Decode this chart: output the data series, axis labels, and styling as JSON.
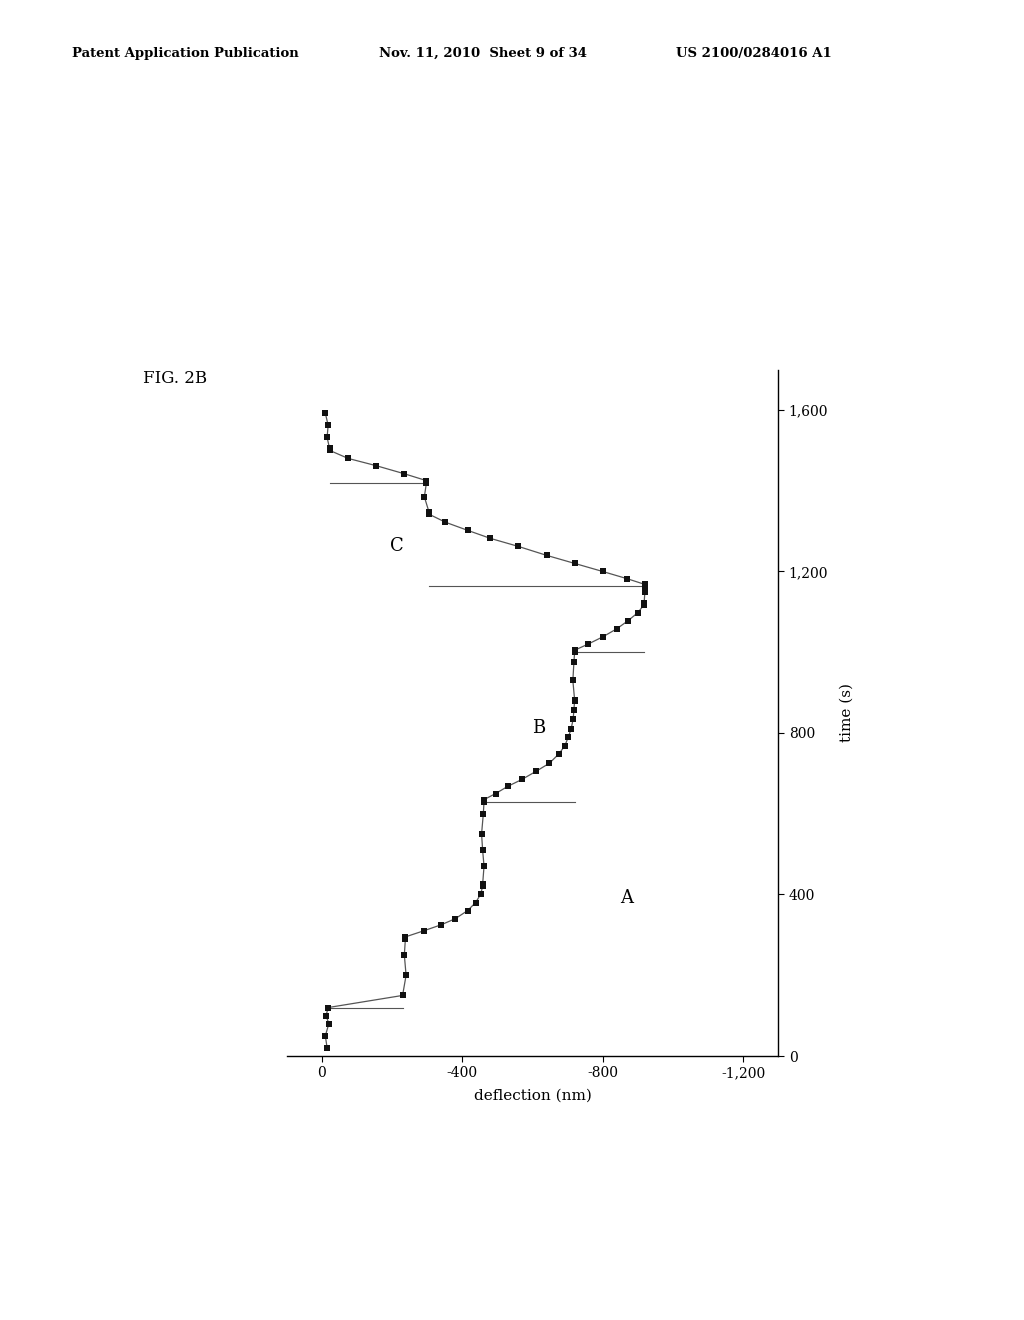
{
  "header_left": "Patent Application Publication",
  "header_mid": "Nov. 11, 2010  Sheet 9 of 34",
  "header_right": "US 2100/0284016 A1",
  "fig_label": "FIG. 2B",
  "xlabel_bottom": "deflection (nm)",
  "ylabel_right": "time (s)",
  "time_lim": [
    0,
    1700
  ],
  "defl_lim": [
    100,
    -1300
  ],
  "time_ticks": [
    0,
    400,
    800,
    1200,
    1600
  ],
  "defl_ticks": [
    0,
    -400,
    -800,
    -1200
  ],
  "background_color": "#ffffff",
  "scatter_color": "#111111",
  "line_color": "#555555",
  "segments": [
    {
      "x": [
        20,
        50,
        80,
        100,
        120
      ],
      "y": [
        -15,
        -10,
        -20,
        -12,
        -18
      ]
    },
    {
      "x": [
        150,
        200,
        250,
        290
      ],
      "y": [
        -230,
        -240,
        -235,
        -238
      ]
    },
    {
      "x": [
        295,
        310,
        325,
        340,
        360,
        380,
        400,
        420
      ],
      "y": [
        -238,
        -290,
        -340,
        -380,
        -415,
        -438,
        -452,
        -458
      ]
    },
    {
      "x": [
        425,
        470,
        510,
        550,
        600,
        630
      ],
      "y": [
        -458,
        -462,
        -458,
        -455,
        -460,
        -462
      ]
    },
    {
      "x": [
        635,
        650,
        668,
        685,
        705,
        725,
        748,
        768,
        790,
        810,
        835,
        858,
        880
      ],
      "y": [
        -462,
        -495,
        -530,
        -570,
        -610,
        -648,
        -675,
        -692,
        -702,
        -710,
        -716,
        -718,
        -720
      ]
    },
    {
      "x": [
        882,
        930,
        975,
        1000
      ],
      "y": [
        -720,
        -715,
        -718,
        -720
      ]
    },
    {
      "x": [
        1005,
        1020,
        1038,
        1058,
        1078,
        1098,
        1118
      ],
      "y": [
        -720,
        -758,
        -800,
        -840,
        -872,
        -900,
        -918
      ]
    },
    {
      "x": [
        1122,
        1148,
        1165
      ],
      "y": [
        -918,
        -920,
        -920
      ]
    },
    {
      "x": [
        1168,
        1182,
        1200,
        1220,
        1240,
        1262,
        1282,
        1302,
        1322,
        1342
      ],
      "y": [
        -920,
        -870,
        -800,
        -720,
        -640,
        -560,
        -480,
        -415,
        -352,
        -305
      ]
    },
    {
      "x": [
        1348,
        1385,
        1420
      ],
      "y": [
        -305,
        -292,
        -298
      ]
    },
    {
      "x": [
        1425,
        1442,
        1462,
        1480,
        1500
      ],
      "y": [
        -298,
        -235,
        -155,
        -75,
        -22
      ]
    },
    {
      "x": [
        1505,
        1532,
        1562,
        1592
      ],
      "y": [
        -22,
        -15,
        -18,
        -10
      ]
    }
  ],
  "connectors": [
    {
      "t1": 120,
      "d1": -18,
      "t2": 120,
      "d2": -230
    },
    {
      "t1": 630,
      "d1": -462,
      "t2": 630,
      "d2": -720
    },
    {
      "t1": 1000,
      "d1": -720,
      "t2": 1000,
      "d2": -918
    },
    {
      "t1": 1165,
      "d1": -920,
      "t2": 1165,
      "d2": -305
    },
    {
      "t1": 1420,
      "d1": -298,
      "t2": 1420,
      "d2": -22
    }
  ],
  "label_A_t": 380,
  "label_A_d": -850,
  "label_B_t": 800,
  "label_B_d": -600,
  "label_C_t": 1250,
  "label_C_d": -195
}
